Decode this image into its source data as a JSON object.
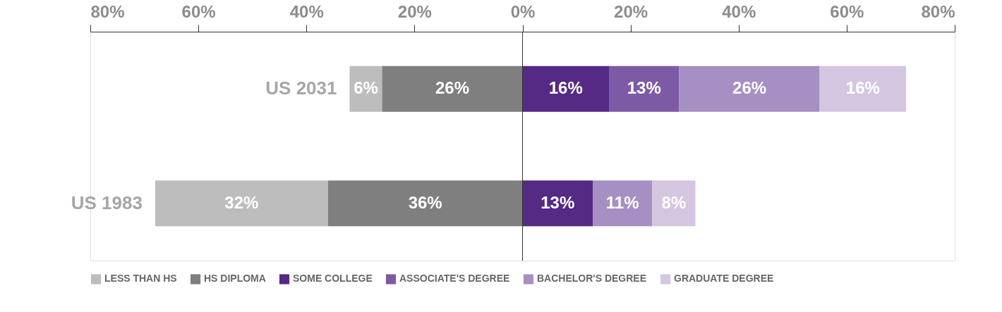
{
  "chart_data": {
    "type": "bar",
    "orientation": "horizontal",
    "categories": [
      "US 2031",
      "US 1983"
    ],
    "series": [
      {
        "name": "LESS THAN HS",
        "color": "#bdbdbd",
        "values": [
          6,
          32
        ],
        "base": [
          -32,
          -68
        ],
        "value_labels": [
          "6%",
          "32%"
        ]
      },
      {
        "name": "HS DIPLOMA",
        "color": "#7f7f7f",
        "values": [
          26,
          36
        ],
        "base": [
          -26,
          -36
        ],
        "value_labels": [
          "26%",
          "36%"
        ]
      },
      {
        "name": "SOME COLLEGE",
        "color": "#542a85",
        "values": [
          16,
          13
        ],
        "base": [
          0,
          0
        ],
        "value_labels": [
          "16%",
          "13%"
        ]
      },
      {
        "name": "ASSOCIATE'S DEGREE",
        "color": "#7d5aa5",
        "values": [
          13,
          null
        ],
        "base": [
          16,
          null
        ],
        "value_labels": [
          "13%",
          null
        ]
      },
      {
        "name": "BACHELOR'S DEGREE",
        "color": "#a68fc3",
        "values": [
          26,
          11
        ],
        "base": [
          29,
          13
        ],
        "value_labels": [
          "26%",
          "11%"
        ]
      },
      {
        "name": "GRADUATE DEGREE",
        "color": "#d4c6e1",
        "values": [
          16,
          8
        ],
        "base": [
          55,
          24
        ],
        "value_labels": [
          "16%",
          "8%"
        ]
      }
    ],
    "xlim": [
      -80,
      80
    ],
    "xticks": [
      {
        "value": -80,
        "label": "80%"
      },
      {
        "value": -60,
        "label": "60%"
      },
      {
        "value": -40,
        "label": "40%"
      },
      {
        "value": -20,
        "label": "20%"
      },
      {
        "value": 0,
        "label": "0%"
      },
      {
        "value": 20,
        "label": "20%"
      },
      {
        "value": 40,
        "label": "40%"
      },
      {
        "value": 60,
        "label": "60%"
      },
      {
        "value": 80,
        "label": "80%"
      }
    ],
    "ref_lines": [
      {
        "axis": "x",
        "value": 0,
        "color": "#333333"
      }
    ],
    "grid": false,
    "legend": "bottom"
  }
}
